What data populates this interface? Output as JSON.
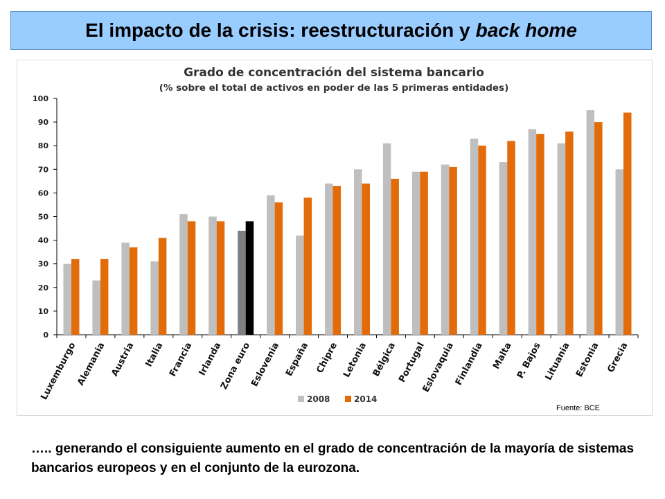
{
  "slide": {
    "title_main": "El impacto de la crisis: reestructuración y",
    "title_italic": "back home",
    "footer": "….. generando el consiguiente aumento en el grado de concentración de la mayoría de sistemas bancarios europeos y en el conjunto de la eurozona.",
    "source": "Fuente: BCE"
  },
  "colors": {
    "banner": "#99ccff",
    "series_2008": "#bfbfbf",
    "series_2014": "#e36c0a",
    "zona_2008": "#7f7f7f",
    "zona_2014": "#000000"
  },
  "chart_data": {
    "type": "bar",
    "title": "Grado de concentración del sistema bancario",
    "subtitle": "(% sobre el total de activos en poder de las 5 primeras entidades)",
    "categories": [
      "Luxemburgo",
      "Alemania",
      "Austria",
      "Italia",
      "Francia",
      "Irlanda",
      "Zona euro",
      "Eslovenia",
      "España",
      "Chipre",
      "Letonia",
      "Bélgica",
      "Portugal",
      "Eslovaquia",
      "Finlandia",
      "Malta",
      "P. Bajos",
      "Lituania",
      "Estonia",
      "Grecia"
    ],
    "series": [
      {
        "name": "2008",
        "values": [
          30,
          23,
          39,
          31,
          51,
          50,
          44,
          59,
          42,
          64,
          70,
          81,
          69,
          72,
          83,
          73,
          87,
          81,
          95,
          70
        ]
      },
      {
        "name": "2014",
        "values": [
          32,
          32,
          37,
          41,
          48,
          48,
          48,
          56,
          58,
          63,
          64,
          66,
          69,
          71,
          80,
          82,
          85,
          86,
          90,
          94
        ]
      }
    ],
    "highlight_category": "Zona euro",
    "ylim": [
      0,
      100
    ],
    "yticks": [
      0,
      10,
      20,
      30,
      40,
      50,
      60,
      70,
      80,
      90,
      100
    ],
    "grid": false,
    "legend": "bottom-center"
  }
}
